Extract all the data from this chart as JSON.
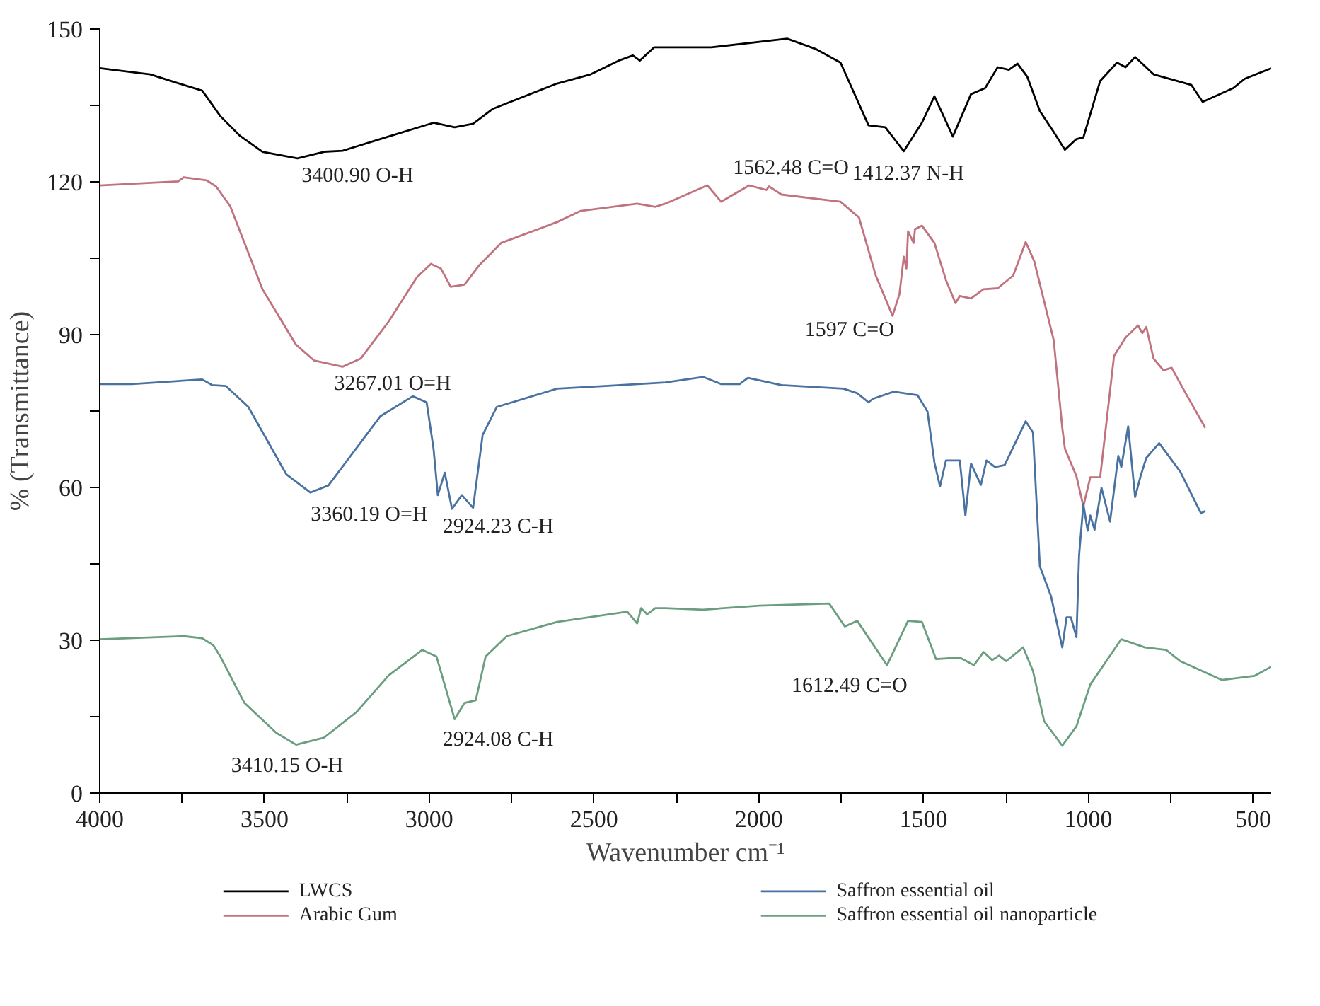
{
  "chart_data": {
    "type": "line",
    "xlabel": "Wavenumber cm⁻¹",
    "ylabel": "% (Transmittance)",
    "xlim": [
      4000,
      445
    ],
    "ylim": [
      0,
      150
    ],
    "xticks": [
      4000,
      {
        "value": 3750,
        "label": null
      },
      3500,
      {
        "value": 3250,
        "label": null
      },
      3000,
      {
        "value": 2750,
        "label": null
      },
      2500,
      {
        "value": 2250,
        "label": null
      },
      2000,
      {
        "value": 1750,
        "label": null
      },
      1500,
      {
        "value": 1250,
        "label": null
      },
      1000,
      {
        "value": 750,
        "label": null
      },
      500
    ],
    "yticks": [
      0,
      {
        "value": 15,
        "label": null
      },
      30,
      {
        "value": 45,
        "label": null
      },
      60,
      {
        "value": 75,
        "label": null
      },
      90,
      {
        "value": 105,
        "label": null
      },
      120,
      {
        "value": 135,
        "label": null
      },
      150
    ],
    "grid": false,
    "legend": "bottom",
    "series": [
      {
        "name": "LWCS",
        "color": "#000000",
        "x": [
          4000,
          3847,
          3745,
          3689,
          3634,
          3574,
          3506,
          3400,
          3319,
          3263,
          3123,
          2987,
          2923,
          2867,
          2808,
          2612,
          2510,
          2425,
          2382,
          2361,
          2318,
          2284,
          2144,
          1914,
          1828,
          1752,
          1667,
          1616,
          1560,
          1505,
          1467,
          1411,
          1356,
          1313,
          1275,
          1241,
          1215,
          1185,
          1147,
          1105,
          1071,
          1036,
          1015,
          964,
          913,
          887,
          858,
          802,
          687,
          653,
          560,
          526,
          445
        ],
        "values": [
          142.3,
          141.1,
          139.0,
          137.9,
          132.9,
          129.0,
          125.9,
          124.6,
          125.9,
          126.1,
          128.9,
          131.6,
          130.7,
          131.4,
          134.3,
          139.3,
          141.1,
          143.8,
          144.8,
          143.8,
          146.4,
          146.4,
          146.4,
          148.1,
          146.1,
          143.4,
          131.1,
          130.7,
          126.0,
          131.6,
          136.8,
          128.9,
          137.2,
          138.4,
          142.5,
          142.0,
          143.2,
          140.6,
          133.9,
          129.8,
          126.3,
          128.4,
          128.7,
          139.8,
          143.4,
          142.5,
          144.5,
          141.1,
          139.0,
          135.7,
          138.4,
          140.2,
          142.3
        ]
      },
      {
        "name": "Arabic Gum",
        "color": "#c0737f",
        "x": [
          4000,
          3762,
          3745,
          3676,
          3647,
          3604,
          3506,
          3404,
          3349,
          3263,
          3208,
          3123,
          3038,
          2995,
          2965,
          2935,
          2893,
          2850,
          2782,
          2612,
          2540,
          2369,
          2314,
          2284,
          2156,
          2114,
          2029,
          1977,
          1969,
          1931,
          1752,
          1696,
          1645,
          1594,
          1573,
          1560,
          1552,
          1547,
          1530,
          1526,
          1505,
          1467,
          1432,
          1403,
          1390,
          1356,
          1318,
          1275,
          1228,
          1190,
          1164,
          1105,
          1079,
          1071,
          1036,
          1015,
          994,
          964,
          922,
          887,
          849,
          836,
          824,
          802,
          772,
          747,
          709,
          645
        ],
        "values": [
          119.3,
          120.1,
          120.9,
          120.3,
          119.1,
          115.2,
          98.9,
          88.0,
          84.9,
          83.7,
          85.3,
          92.6,
          101.2,
          103.9,
          103.0,
          99.4,
          99.8,
          103.5,
          108.0,
          112.1,
          114.3,
          115.7,
          115.1,
          115.7,
          119.3,
          116.1,
          119.3,
          118.4,
          119.1,
          117.5,
          116.1,
          113.0,
          101.6,
          93.7,
          98.0,
          105.3,
          103.0,
          110.3,
          108.0,
          110.7,
          111.4,
          108.0,
          100.7,
          96.2,
          97.6,
          97.1,
          98.9,
          99.1,
          101.6,
          108.2,
          104.4,
          88.9,
          71.7,
          67.6,
          62.2,
          56.3,
          62.0,
          62.0,
          85.8,
          89.4,
          91.8,
          90.3,
          91.5,
          85.3,
          83.0,
          83.5,
          79.0,
          71.7
        ]
      },
      {
        "name": "Saffron essential oil",
        "color": "#4a72a0",
        "x": [
          4000,
          3902,
          3689,
          3659,
          3617,
          3549,
          3434,
          3361,
          3306,
          3148,
          3050,
          3008,
          2987,
          2974,
          2953,
          2931,
          2901,
          2867,
          2838,
          2795,
          2612,
          2467,
          2284,
          2169,
          2114,
          2058,
          2033,
          1931,
          1743,
          1701,
          1667,
          1654,
          1590,
          1518,
          1488,
          1467,
          1450,
          1432,
          1390,
          1373,
          1356,
          1326,
          1309,
          1283,
          1254,
          1190,
          1168,
          1147,
          1113,
          1079,
          1066,
          1053,
          1036,
          1028,
          1015,
          1002,
          994,
          981,
          960,
          934,
          909,
          900,
          879,
          858,
          841,
          824,
          785,
          721,
          658,
          645
        ],
        "values": [
          80.3,
          80.3,
          81.2,
          80.1,
          79.9,
          75.8,
          62.6,
          59.0,
          60.4,
          74.0,
          77.9,
          76.7,
          67.6,
          58.5,
          62.9,
          55.8,
          58.5,
          56.0,
          70.3,
          75.8,
          79.4,
          79.9,
          80.6,
          81.7,
          80.3,
          80.3,
          81.5,
          80.1,
          79.4,
          78.5,
          76.7,
          77.4,
          78.8,
          78.1,
          74.9,
          64.9,
          60.2,
          65.3,
          65.3,
          54.5,
          64.7,
          60.5,
          65.3,
          64.0,
          64.4,
          73.0,
          70.8,
          44.5,
          38.6,
          28.6,
          34.5,
          34.5,
          30.6,
          46.7,
          56.7,
          51.5,
          54.5,
          51.7,
          59.9,
          53.3,
          66.2,
          64.0,
          72.0,
          58.1,
          62.3,
          65.8,
          68.7,
          63.1,
          54.9,
          55.4
        ]
      },
      {
        "name": "Saffron essential oil nanoparticle",
        "color": "#6a9e7f",
        "x": [
          4000,
          3745,
          3689,
          3655,
          3634,
          3561,
          3464,
          3404,
          3319,
          3221,
          3123,
          3021,
          2978,
          2923,
          2893,
          2859,
          2829,
          2765,
          2612,
          2399,
          2369,
          2357,
          2339,
          2314,
          2284,
          2169,
          1999,
          1786,
          1739,
          1701,
          1611,
          1547,
          1505,
          1462,
          1390,
          1347,
          1318,
          1292,
          1271,
          1249,
          1198,
          1168,
          1134,
          1079,
          1036,
          994,
          900,
          828,
          764,
          721,
          594,
          496,
          445
        ],
        "values": [
          30.2,
          30.8,
          30.4,
          29.0,
          26.8,
          17.7,
          11.8,
          9.5,
          10.9,
          15.9,
          23.1,
          28.1,
          26.8,
          14.5,
          17.7,
          18.2,
          26.8,
          30.8,
          33.6,
          35.6,
          33.3,
          36.3,
          35.1,
          36.3,
          36.3,
          36.0,
          36.8,
          37.2,
          32.7,
          33.8,
          25.1,
          33.8,
          33.6,
          26.3,
          26.6,
          25.1,
          27.7,
          26.1,
          27.0,
          25.9,
          28.6,
          24.0,
          14.1,
          9.3,
          13.1,
          21.3,
          30.2,
          28.6,
          28.1,
          25.9,
          22.2,
          23.0,
          24.8
        ]
      }
    ],
    "annotations": [
      "3400.90 O-H",
      "3267.01 O=H",
      "1562.48 C=O",
      "1412.37 N-H",
      "1597 C=O",
      "3360.19 O=H",
      "2924.23 C-H",
      "3410.15 O-H",
      "2924.08 C-H",
      "1612.49 C=O"
    ]
  }
}
